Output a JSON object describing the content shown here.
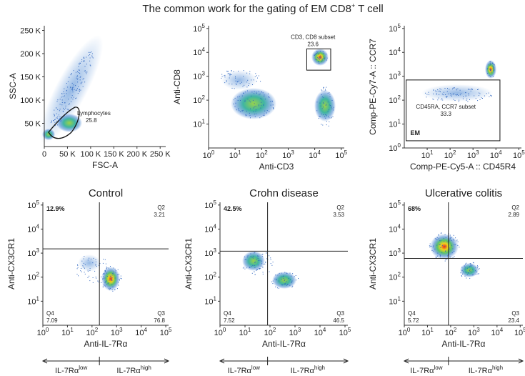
{
  "title": {
    "main": "The common work for the gating of EM CD8",
    "sup": "+",
    "rest": " T cell"
  },
  "panels": [
    {
      "scale": "linear",
      "x_label": "FSC-A",
      "y_label": "SSC-A",
      "xlim": [
        0,
        262000
      ],
      "ylim": [
        0,
        260000
      ],
      "xticks": [
        {
          "value": 0,
          "label": "0"
        },
        {
          "value": 50000,
          "label": "50 K"
        },
        {
          "value": 100000,
          "label": "100 K"
        },
        {
          "value": 150000,
          "label": "150 K"
        },
        {
          "value": 200000,
          "label": "200 K"
        },
        {
          "value": 250000,
          "label": "250 K"
        }
      ],
      "yticks": [
        {
          "value": 50000,
          "label": "50 K"
        },
        {
          "value": 100000,
          "label": "100 K"
        },
        {
          "value": 150000,
          "label": "150 K"
        },
        {
          "value": 200000,
          "label": "200 K"
        },
        {
          "value": 250000,
          "label": "250 K"
        }
      ],
      "gate_label": [
        "Lymphocytes",
        "25.8"
      ]
    },
    {
      "scale": "log",
      "x_label": "Anti-CD3",
      "y_label": "Anti-CD8",
      "xlim": [
        1,
        130000
      ],
      "ylim": [
        1,
        130000
      ],
      "xticks": [
        {
          "value": 1,
          "label": {
            "base": "10",
            "exp": "0"
          }
        },
        {
          "value": 10,
          "label": {
            "base": "10",
            "exp": "1"
          }
        },
        {
          "value": 100,
          "label": {
            "base": "10",
            "exp": "2"
          }
        },
        {
          "value": 1000,
          "label": {
            "base": "10",
            "exp": "3"
          }
        },
        {
          "value": 10000,
          "label": {
            "base": "10",
            "exp": "4"
          }
        },
        {
          "value": 100000,
          "label": {
            "base": "10",
            "exp": "5"
          }
        }
      ],
      "yticks": [
        {
          "value": 10,
          "label": {
            "base": "10",
            "exp": "1"
          }
        },
        {
          "value": 100,
          "label": {
            "base": "10",
            "exp": "2"
          }
        },
        {
          "value": 1000,
          "label": {
            "base": "10",
            "exp": "3"
          }
        },
        {
          "value": 10000,
          "label": {
            "base": "10",
            "exp": "4"
          }
        },
        {
          "value": 100000,
          "label": {
            "base": "10",
            "exp": "5"
          }
        }
      ],
      "gate": {
        "x": [
          5000,
          40000
        ],
        "y": [
          1800,
          14000
        ]
      },
      "gate_label": [
        "CD3, CD8 subset",
        "23.6"
      ]
    },
    {
      "scale": "log",
      "x_label": "Comp-PE-Cy5-A :: CD45R4",
      "y_label": "Comp-PE-Cy7-A :: CCR7",
      "xlim": [
        1,
        130000
      ],
      "ylim": [
        1,
        130000
      ],
      "xticks": [
        {
          "value": 10,
          "label": {
            "base": "10",
            "exp": "1"
          }
        },
        {
          "value": 100,
          "label": {
            "base": "10",
            "exp": "2"
          }
        },
        {
          "value": 1000,
          "label": {
            "base": "10",
            "exp": "3"
          }
        },
        {
          "value": 10000,
          "label": {
            "base": "10",
            "exp": "4"
          }
        },
        {
          "value": 100000,
          "label": {
            "base": "10",
            "exp": "5"
          }
        }
      ],
      "yticks": [
        {
          "value": 1,
          "label": {
            "base": "10",
            "exp": "0"
          }
        },
        {
          "value": 10,
          "label": {
            "base": "10",
            "exp": "1"
          }
        },
        {
          "value": 100,
          "label": {
            "base": "10",
            "exp": "2"
          }
        },
        {
          "value": 1000,
          "label": {
            "base": "10",
            "exp": "3"
          }
        },
        {
          "value": 10000,
          "label": {
            "base": "10",
            "exp": "4"
          }
        },
        {
          "value": 100000,
          "label": {
            "base": "10",
            "exp": "5"
          }
        }
      ],
      "gate": {
        "x": [
          1.2,
          15000
        ],
        "y": [
          2,
          700
        ]
      },
      "gate_label": [
        "CD45RA, CCR7 subset",
        "33.3"
      ],
      "gate_name": "EM"
    },
    {
      "scale": "log",
      "title": "Control",
      "x_label": "Anti-IL-7Rα",
      "y_label": "Anti-CX3CR1",
      "xlim": [
        1,
        130000
      ],
      "ylim": [
        1,
        130000
      ],
      "xticks": [
        {
          "value": 1,
          "label": {
            "base": "10",
            "exp": "0"
          }
        },
        {
          "value": 10,
          "label": {
            "base": "10",
            "exp": "1"
          }
        },
        {
          "value": 100,
          "label": {
            "base": "10",
            "exp": "2"
          }
        },
        {
          "value": 1000,
          "label": {
            "base": "10",
            "exp": "3"
          }
        },
        {
          "value": 10000,
          "label": {
            "base": "10",
            "exp": "4"
          }
        },
        {
          "value": 100000,
          "label": {
            "base": "10",
            "exp": "5"
          }
        }
      ],
      "yticks": [
        {
          "value": 10,
          "label": {
            "base": "10",
            "exp": "1"
          }
        },
        {
          "value": 100,
          "label": {
            "base": "10",
            "exp": "2"
          }
        },
        {
          "value": 1000,
          "label": {
            "base": "10",
            "exp": "3"
          }
        },
        {
          "value": 10000,
          "label": {
            "base": "10",
            "exp": "4"
          }
        },
        {
          "value": 100000,
          "label": {
            "base": "10",
            "exp": "5"
          }
        }
      ],
      "quadrant": {
        "x": 200,
        "y": 1500
      },
      "q1": "12.9%",
      "q2": [
        "Q2",
        "3.21"
      ],
      "q3": [
        "Q3",
        "76.8"
      ],
      "q4": [
        "Q4",
        "7.09"
      ],
      "arrow_labels": [
        {
          "text": "IL-7Rα",
          "sup": "low"
        },
        {
          "text": "IL-7Rα",
          "sup": "high"
        }
      ]
    },
    {
      "scale": "log",
      "title": "Crohn disease",
      "x_label": "Anti-IL-7Rα",
      "y_label": "Anti-CX3CR1",
      "xlim": [
        1,
        130000
      ],
      "ylim": [
        1,
        130000
      ],
      "xticks": [
        {
          "value": 1,
          "label": {
            "base": "10",
            "exp": "0"
          }
        },
        {
          "value": 10,
          "label": {
            "base": "10",
            "exp": "1"
          }
        },
        {
          "value": 100,
          "label": {
            "base": "10",
            "exp": "2"
          }
        },
        {
          "value": 1000,
          "label": {
            "base": "10",
            "exp": "3"
          }
        },
        {
          "value": 10000,
          "label": {
            "base": "10",
            "exp": "4"
          }
        },
        {
          "value": 100000,
          "label": {
            "base": "10",
            "exp": "5"
          }
        }
      ],
      "yticks": [
        {
          "value": 10,
          "label": {
            "base": "10",
            "exp": "1"
          }
        },
        {
          "value": 100,
          "label": {
            "base": "10",
            "exp": "2"
          }
        },
        {
          "value": 1000,
          "label": {
            "base": "10",
            "exp": "3"
          }
        },
        {
          "value": 10000,
          "label": {
            "base": "10",
            "exp": "4"
          }
        },
        {
          "value": 100000,
          "label": {
            "base": "10",
            "exp": "5"
          }
        }
      ],
      "quadrant": {
        "x": 80,
        "y": 1200
      },
      "q1": "42.5%",
      "q2": [
        "Q2",
        "3.53"
      ],
      "q3": [
        "Q3",
        "46.5"
      ],
      "q4": [
        "Q4",
        "7.52"
      ],
      "arrow_labels": [
        {
          "text": "IL-7Rα",
          "sup": "low"
        },
        {
          "text": "IL-7Rα",
          "sup": "high"
        }
      ]
    },
    {
      "scale": "log",
      "title": "Ulcerative colitis",
      "x_label": "Anti-IL-7Rα",
      "y_label": "Anti-CX3CR1",
      "xlim": [
        1,
        130000
      ],
      "ylim": [
        1,
        130000
      ],
      "xticks": [
        {
          "value": 1,
          "label": {
            "base": "10",
            "exp": "0"
          }
        },
        {
          "value": 10,
          "label": {
            "base": "10",
            "exp": "1"
          }
        },
        {
          "value": 100,
          "label": {
            "base": "10",
            "exp": "2"
          }
        },
        {
          "value": 1000,
          "label": {
            "base": "10",
            "exp": "3"
          }
        },
        {
          "value": 10000,
          "label": {
            "base": "10",
            "exp": "4"
          }
        },
        {
          "value": 100000,
          "label": {
            "base": "10",
            "exp": "5"
          }
        }
      ],
      "yticks": [
        {
          "value": 10,
          "label": {
            "base": "10",
            "exp": "1"
          }
        },
        {
          "value": 100,
          "label": {
            "base": "10",
            "exp": "2"
          }
        },
        {
          "value": 1000,
          "label": {
            "base": "10",
            "exp": "3"
          }
        },
        {
          "value": 10000,
          "label": {
            "base": "10",
            "exp": "4"
          }
        },
        {
          "value": 100000,
          "label": {
            "base": "10",
            "exp": "5"
          }
        }
      ],
      "quadrant": {
        "x": 80,
        "y": 600
      },
      "q1": "68%",
      "q2": [
        "Q2",
        "2.89"
      ],
      "q3": [
        "Q3",
        "23.4"
      ],
      "q4": [
        "Q4",
        "5.72"
      ],
      "arrow_labels": [
        {
          "text": "IL-7Rα",
          "sup": "low"
        },
        {
          "text": "IL-7Rα",
          "sup": "high"
        }
      ]
    }
  ]
}
